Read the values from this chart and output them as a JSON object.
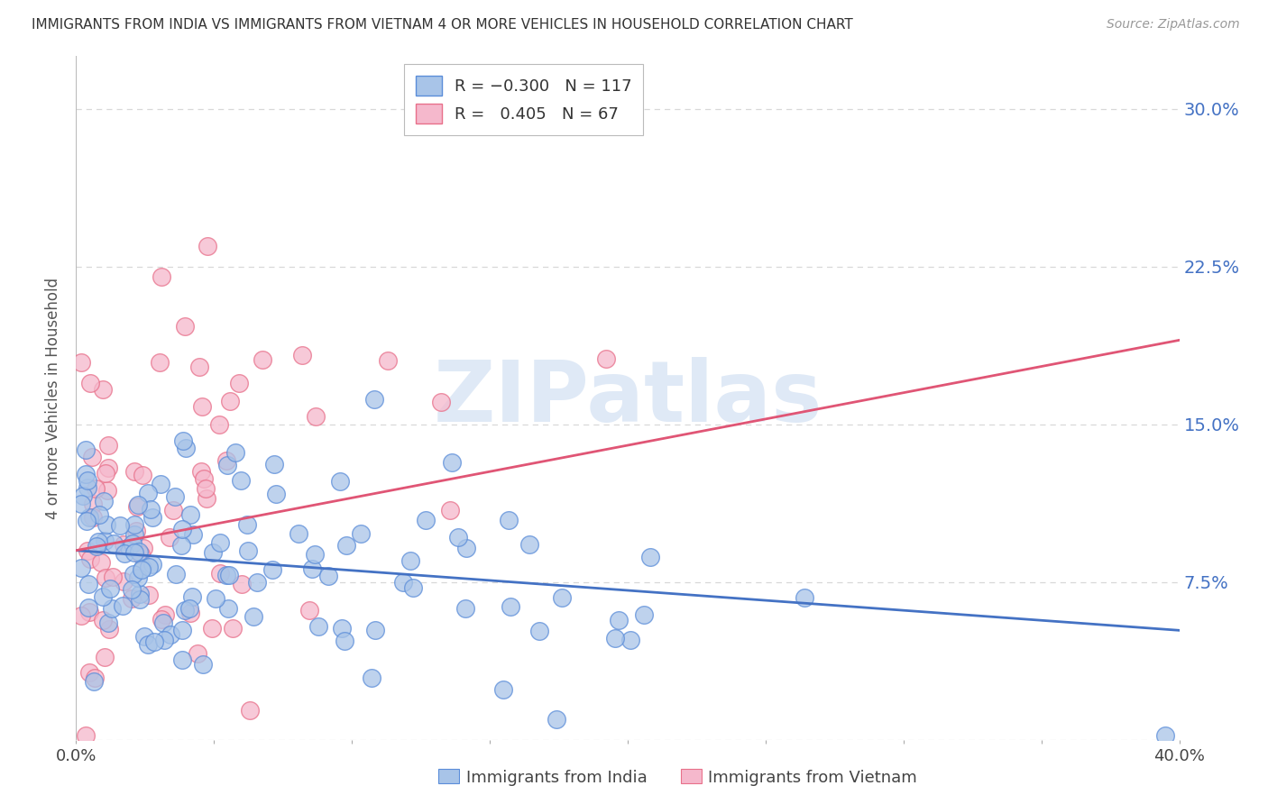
{
  "title": "IMMIGRANTS FROM INDIA VS IMMIGRANTS FROM VIETNAM 4 OR MORE VEHICLES IN HOUSEHOLD CORRELATION CHART",
  "source": "Source: ZipAtlas.com",
  "ylabel": "4 or more Vehicles in Household",
  "xlabel_india": "Immigrants from India",
  "xlabel_vietnam": "Immigrants from Vietnam",
  "xlim": [
    0.0,
    0.4
  ],
  "ylim": [
    0.0,
    0.325
  ],
  "ytick_vals": [
    0.0,
    0.075,
    0.15,
    0.225,
    0.3
  ],
  "ytick_labels": [
    "",
    "7.5%",
    "15.0%",
    "22.5%",
    "30.0%"
  ],
  "xtick_vals": [
    0.0,
    0.05,
    0.1,
    0.15,
    0.2,
    0.25,
    0.3,
    0.35,
    0.4
  ],
  "xtick_labels_show": [
    "0.0%",
    "",
    "",
    "",
    "",
    "",
    "",
    "",
    "40.0%"
  ],
  "india_face_color": "#a8c4e8",
  "vietnam_face_color": "#f5b8cc",
  "india_edge_color": "#5b8dd9",
  "vietnam_edge_color": "#e8708a",
  "india_line_color": "#4472c4",
  "vietnam_line_color": "#e05575",
  "right_axis_color": "#4472c4",
  "india_R": -0.3,
  "india_N": 117,
  "vietnam_R": 0.405,
  "vietnam_N": 67,
  "india_legend_label": "R = -0.300   N = 117",
  "vietnam_legend_label": "R =  0.405   N = 67",
  "india_bottom_label": "Immigrants from India",
  "vietnam_bottom_label": "Immigrants from Vietnam",
  "watermark": "ZIPatlas",
  "background_color": "#ffffff",
  "grid_color": "#d8d8d8",
  "title_color": "#333333",
  "source_color": "#999999",
  "ylabel_color": "#555555",
  "bottom_label_color": "#444444"
}
